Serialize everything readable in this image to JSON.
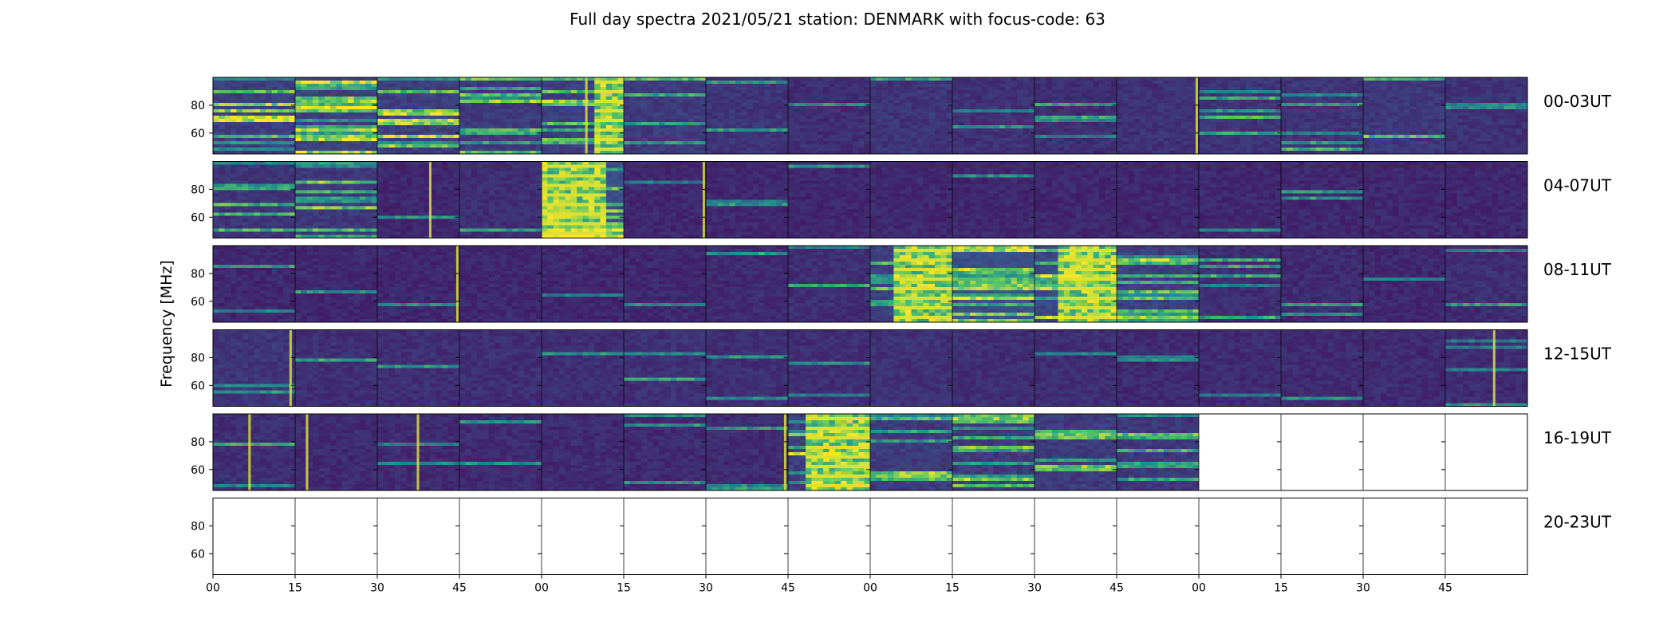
{
  "chart_data": {
    "type": "heatmap",
    "title": "Full day spectra 2021/05/21 station: DENMARK with focus-code: 63",
    "ylabel": "Frequency [MHz]",
    "y_ticks": [
      "60",
      "80"
    ],
    "ylim": [
      45,
      100
    ],
    "x_tick_labels": [
      "00",
      "15",
      "30",
      "45",
      "00",
      "15",
      "30",
      "45",
      "00",
      "15",
      "30",
      "45",
      "00",
      "15",
      "30",
      "45"
    ],
    "panels_per_row": 16,
    "colormap": [
      "#440154",
      "#3b528b",
      "#21918c",
      "#5ec962",
      "#fde725"
    ],
    "rows": [
      {
        "label": "00-03UT",
        "panels": [
          {
            "base": 0.15,
            "stripes": 0.75,
            "burst": null,
            "vline": 0,
            "empty": false
          },
          {
            "base": 0.16,
            "stripes": 0.85,
            "burst": null,
            "vline": 0,
            "empty": false
          },
          {
            "base": 0.15,
            "stripes": 0.8,
            "burst": null,
            "vline": 0,
            "empty": false
          },
          {
            "base": 0.14,
            "stripes": 0.6,
            "burst": null,
            "vline": 0,
            "empty": false
          },
          {
            "base": 0.15,
            "stripes": 0.5,
            "burst": [
              0.65,
              1.0
            ],
            "vline": 0.55,
            "empty": false
          },
          {
            "base": 0.14,
            "stripes": 0.45,
            "burst": null,
            "vline": 0,
            "empty": false
          },
          {
            "base": 0.12,
            "stripes": 0.3,
            "burst": null,
            "vline": 0,
            "empty": false
          },
          {
            "base": 0.1,
            "stripes": 0.2,
            "burst": null,
            "vline": 0,
            "empty": false
          },
          {
            "base": 0.12,
            "stripes": 0.25,
            "burst": null,
            "vline": 0,
            "empty": false
          },
          {
            "base": 0.11,
            "stripes": 0.2,
            "burst": null,
            "vline": 0,
            "empty": false
          },
          {
            "base": 0.1,
            "stripes": 0.18,
            "burst": null,
            "vline": 0,
            "empty": false
          },
          {
            "base": 0.11,
            "stripes": 0.22,
            "burst": null,
            "vline": 0.98,
            "empty": false
          },
          {
            "base": 0.12,
            "stripes": 0.25,
            "burst": null,
            "vline": 0,
            "empty": false
          },
          {
            "base": 0.12,
            "stripes": 0.3,
            "burst": null,
            "vline": 0,
            "empty": false
          },
          {
            "base": 0.13,
            "stripes": 0.35,
            "burst": null,
            "vline": 0,
            "empty": false
          },
          {
            "base": 0.11,
            "stripes": 0.25,
            "burst": null,
            "vline": 0,
            "empty": false
          }
        ]
      },
      {
        "label": "04-07UT",
        "panels": [
          {
            "base": 0.12,
            "stripes": 0.3,
            "burst": null,
            "vline": 0,
            "empty": false
          },
          {
            "base": 0.13,
            "stripes": 0.55,
            "burst": null,
            "vline": 0,
            "empty": false
          },
          {
            "base": 0.08,
            "stripes": 0.08,
            "burst": null,
            "vline": 0.65,
            "empty": false
          },
          {
            "base": 0.1,
            "stripes": 0.2,
            "burst": null,
            "vline": 0,
            "empty": false
          },
          {
            "base": 0.2,
            "stripes": 0.9,
            "burst": [
              0.0,
              0.78
            ],
            "vline": 0,
            "empty": false
          },
          {
            "base": 0.08,
            "stripes": 0.08,
            "burst": null,
            "vline": 0.98,
            "empty": false
          },
          {
            "base": 0.08,
            "stripes": 0.06,
            "burst": null,
            "vline": 0,
            "empty": false
          },
          {
            "base": 0.08,
            "stripes": 0.06,
            "burst": null,
            "vline": 0,
            "empty": false
          },
          {
            "base": 0.08,
            "stripes": 0.06,
            "burst": null,
            "vline": 0,
            "empty": false
          },
          {
            "base": 0.08,
            "stripes": 0.06,
            "burst": null,
            "vline": 0,
            "empty": false
          },
          {
            "base": 0.08,
            "stripes": 0.06,
            "burst": null,
            "vline": 0,
            "empty": false
          },
          {
            "base": 0.08,
            "stripes": 0.06,
            "burst": null,
            "vline": 0,
            "empty": false
          },
          {
            "base": 0.08,
            "stripes": 0.06,
            "burst": null,
            "vline": 0,
            "empty": false
          },
          {
            "base": 0.08,
            "stripes": 0.06,
            "burst": null,
            "vline": 0,
            "empty": false
          },
          {
            "base": 0.08,
            "stripes": 0.06,
            "burst": null,
            "vline": 0,
            "empty": false
          },
          {
            "base": 0.08,
            "stripes": 0.06,
            "burst": null,
            "vline": 0,
            "empty": false
          }
        ]
      },
      {
        "label": "08-11UT",
        "panels": [
          {
            "base": 0.08,
            "stripes": 0.06,
            "burst": null,
            "vline": 0,
            "empty": false
          },
          {
            "base": 0.08,
            "stripes": 0.06,
            "burst": null,
            "vline": 0,
            "empty": false
          },
          {
            "base": 0.08,
            "stripes": 0.06,
            "burst": null,
            "vline": 0.98,
            "empty": false
          },
          {
            "base": 0.08,
            "stripes": 0.06,
            "burst": null,
            "vline": 0,
            "empty": false
          },
          {
            "base": 0.08,
            "stripes": 0.08,
            "burst": null,
            "vline": 0,
            "empty": false
          },
          {
            "base": 0.08,
            "stripes": 0.06,
            "burst": null,
            "vline": 0,
            "empty": false
          },
          {
            "base": 0.09,
            "stripes": 0.12,
            "burst": null,
            "vline": 0,
            "empty": false
          },
          {
            "base": 0.1,
            "stripes": 0.2,
            "burst": null,
            "vline": 0,
            "empty": false
          },
          {
            "base": 0.15,
            "stripes": 0.6,
            "burst": [
              0.3,
              1.0
            ],
            "vline": 0,
            "empty": false
          },
          {
            "base": 0.2,
            "stripes": 0.8,
            "burst": null,
            "vline": 0,
            "empty": false
          },
          {
            "base": 0.18,
            "stripes": 0.7,
            "burst": [
              0.3,
              1.0
            ],
            "vline": 0,
            "empty": false
          },
          {
            "base": 0.15,
            "stripes": 0.6,
            "burst": null,
            "vline": 0,
            "empty": false
          },
          {
            "base": 0.1,
            "stripes": 0.25,
            "burst": null,
            "vline": 0,
            "empty": false
          },
          {
            "base": 0.09,
            "stripes": 0.12,
            "burst": null,
            "vline": 0,
            "empty": false
          },
          {
            "base": 0.08,
            "stripes": 0.08,
            "burst": null,
            "vline": 0,
            "empty": false
          },
          {
            "base": 0.1,
            "stripes": 0.12,
            "burst": null,
            "vline": 0,
            "empty": false
          }
        ]
      },
      {
        "label": "12-15UT",
        "panels": [
          {
            "base": 0.12,
            "stripes": 0.1,
            "burst": null,
            "vline": 0.95,
            "empty": false
          },
          {
            "base": 0.1,
            "stripes": 0.1,
            "burst": null,
            "vline": 0,
            "empty": false
          },
          {
            "base": 0.1,
            "stripes": 0.08,
            "burst": null,
            "vline": 0,
            "empty": false
          },
          {
            "base": 0.1,
            "stripes": 0.08,
            "burst": null,
            "vline": 0,
            "empty": false
          },
          {
            "base": 0.1,
            "stripes": 0.08,
            "burst": null,
            "vline": 0,
            "empty": false
          },
          {
            "base": 0.11,
            "stripes": 0.12,
            "burst": null,
            "vline": 0,
            "empty": false
          },
          {
            "base": 0.1,
            "stripes": 0.1,
            "burst": null,
            "vline": 0,
            "empty": false
          },
          {
            "base": 0.1,
            "stripes": 0.1,
            "burst": null,
            "vline": 0,
            "empty": false
          },
          {
            "base": 0.11,
            "stripes": 0.12,
            "burst": null,
            "vline": 0,
            "empty": false
          },
          {
            "base": 0.1,
            "stripes": 0.1,
            "burst": null,
            "vline": 0,
            "empty": false
          },
          {
            "base": 0.1,
            "stripes": 0.08,
            "burst": null,
            "vline": 0,
            "empty": false
          },
          {
            "base": 0.09,
            "stripes": 0.08,
            "burst": null,
            "vline": 0,
            "empty": false
          },
          {
            "base": 0.09,
            "stripes": 0.08,
            "burst": null,
            "vline": 0,
            "empty": false
          },
          {
            "base": 0.09,
            "stripes": 0.08,
            "burst": null,
            "vline": 0,
            "empty": false
          },
          {
            "base": 0.09,
            "stripes": 0.08,
            "burst": null,
            "vline": 0,
            "empty": false
          },
          {
            "base": 0.09,
            "stripes": 0.1,
            "burst": null,
            "vline": 0.6,
            "empty": false
          }
        ]
      },
      {
        "label": "16-19UT",
        "panels": [
          {
            "base": 0.1,
            "stripes": 0.12,
            "burst": null,
            "vline": 0.45,
            "empty": false
          },
          {
            "base": 0.09,
            "stripes": 0.1,
            "burst": null,
            "vline": 0.15,
            "empty": false
          },
          {
            "base": 0.09,
            "stripes": 0.08,
            "burst": null,
            "vline": 0.5,
            "empty": false
          },
          {
            "base": 0.09,
            "stripes": 0.08,
            "burst": null,
            "vline": 0,
            "empty": false
          },
          {
            "base": 0.09,
            "stripes": 0.08,
            "burst": null,
            "vline": 0,
            "empty": false
          },
          {
            "base": 0.09,
            "stripes": 0.08,
            "burst": null,
            "vline": 0,
            "empty": false
          },
          {
            "base": 0.09,
            "stripes": 0.1,
            "burst": null,
            "vline": 0.97,
            "empty": false
          },
          {
            "base": 0.15,
            "stripes": 0.8,
            "burst": [
              0.2,
              1.0
            ],
            "vline": 0,
            "empty": false
          },
          {
            "base": 0.14,
            "stripes": 0.55,
            "burst": null,
            "vline": 0,
            "empty": false
          },
          {
            "base": 0.14,
            "stripes": 0.5,
            "burst": null,
            "vline": 0,
            "empty": false
          },
          {
            "base": 0.14,
            "stripes": 0.5,
            "burst": null,
            "vline": 0,
            "empty": false
          },
          {
            "base": 0.13,
            "stripes": 0.45,
            "burst": null,
            "vline": 0,
            "empty": false
          },
          {
            "base": 0,
            "stripes": 0,
            "burst": null,
            "vline": 0,
            "empty": true
          },
          {
            "base": 0,
            "stripes": 0,
            "burst": null,
            "vline": 0,
            "empty": true
          },
          {
            "base": 0,
            "stripes": 0,
            "burst": null,
            "vline": 0,
            "empty": true
          },
          {
            "base": 0,
            "stripes": 0,
            "burst": null,
            "vline": 0,
            "empty": true
          }
        ]
      },
      {
        "label": "20-23UT",
        "panels": [
          {
            "base": 0,
            "stripes": 0,
            "burst": null,
            "vline": 0,
            "empty": true
          },
          {
            "base": 0,
            "stripes": 0,
            "burst": null,
            "vline": 0,
            "empty": true
          },
          {
            "base": 0,
            "stripes": 0,
            "burst": null,
            "vline": 0,
            "empty": true
          },
          {
            "base": 0,
            "stripes": 0,
            "burst": null,
            "vline": 0,
            "empty": true
          },
          {
            "base": 0,
            "stripes": 0,
            "burst": null,
            "vline": 0,
            "empty": true
          },
          {
            "base": 0,
            "stripes": 0,
            "burst": null,
            "vline": 0,
            "empty": true
          },
          {
            "base": 0,
            "stripes": 0,
            "burst": null,
            "vline": 0,
            "empty": true
          },
          {
            "base": 0,
            "stripes": 0,
            "burst": null,
            "vline": 0,
            "empty": true
          },
          {
            "base": 0,
            "stripes": 0,
            "burst": null,
            "vline": 0,
            "empty": true
          },
          {
            "base": 0,
            "stripes": 0,
            "burst": null,
            "vline": 0,
            "empty": true
          },
          {
            "base": 0,
            "stripes": 0,
            "burst": null,
            "vline": 0,
            "empty": true
          },
          {
            "base": 0,
            "stripes": 0,
            "burst": null,
            "vline": 0,
            "empty": true
          },
          {
            "base": 0,
            "stripes": 0,
            "burst": null,
            "vline": 0,
            "empty": true
          },
          {
            "base": 0,
            "stripes": 0,
            "burst": null,
            "vline": 0,
            "empty": true
          },
          {
            "base": 0,
            "stripes": 0,
            "burst": null,
            "vline": 0,
            "empty": true
          },
          {
            "base": 0,
            "stripes": 0,
            "burst": null,
            "vline": 0,
            "empty": true
          }
        ]
      }
    ]
  }
}
